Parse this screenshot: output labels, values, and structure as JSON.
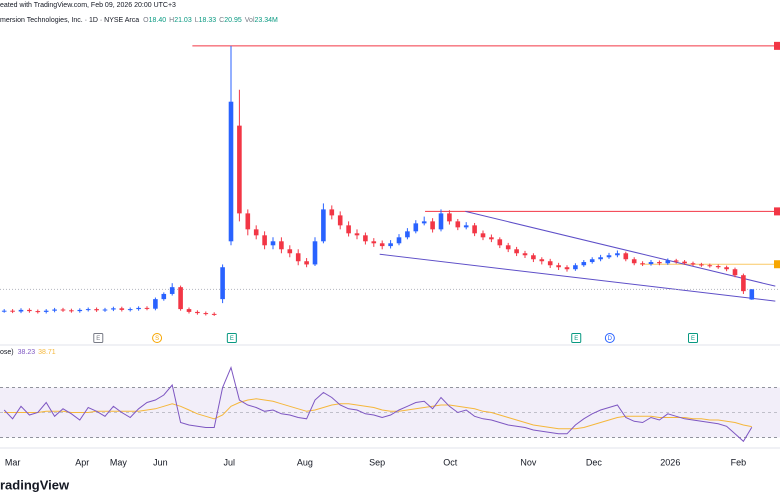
{
  "header": {
    "credit": "eated with TradingView.com, Feb 09, 2026 20:00 UTC+3",
    "symbol": "mersion Technologies, Inc. · 1D · NYSE Arca",
    "ohlc": [
      {
        "key": "O",
        "value": "18.40"
      },
      {
        "key": "H",
        "value": "21.03"
      },
      {
        "key": "L",
        "value": "18.33"
      },
      {
        "key": "C",
        "value": "20.95"
      },
      {
        "key": "Vol",
        "value": "23.34M"
      }
    ]
  },
  "footer": {
    "brand": "radingView"
  },
  "chart_data": {
    "type": "candlestick",
    "up_color": "#2962ff",
    "down_color": "#f23645",
    "xlim": [
      -0.5,
      89.5
    ],
    "ylim": [
      7,
      93.5
    ],
    "xticks": [
      {
        "value": 1,
        "label": "Mar"
      },
      {
        "value": 9.3,
        "label": "Apr"
      },
      {
        "value": 13.6,
        "label": "May"
      },
      {
        "value": 18.6,
        "label": "Jun"
      },
      {
        "value": 26.8,
        "label": "Jul"
      },
      {
        "value": 35.8,
        "label": "Aug"
      },
      {
        "value": 44.4,
        "label": "Sep"
      },
      {
        "value": 53.1,
        "label": "Oct"
      },
      {
        "value": 62.4,
        "label": "Nov"
      },
      {
        "value": 70.2,
        "label": "Dec"
      },
      {
        "value": 79.3,
        "label": "2026"
      },
      {
        "value": 87.4,
        "label": "Feb"
      }
    ],
    "open": [
      15.5,
      15.6,
      15.4,
      15.8,
      15.5,
      15.3,
      15.6,
      15.9,
      15.7,
      15.5,
      15.8,
      16.0,
      15.7,
      15.9,
      16.2,
      15.8,
      16.0,
      16.3,
      16.1,
      18.5,
      19.8,
      21.5,
      16.0,
      15.3,
      15.0,
      14.8,
      18.5,
      33,
      62,
      40,
      36,
      34.5,
      32,
      33,
      31,
      30,
      28,
      27.2,
      33,
      41,
      39.5,
      37,
      35,
      34.5,
      33,
      32.5,
      31.8,
      32.5,
      34,
      35.5,
      37.5,
      38,
      36,
      40,
      38,
      36.5,
      37,
      35,
      34,
      33.5,
      32,
      31,
      30,
      29.5,
      28.5,
      28,
      27,
      26.5,
      26,
      27,
      27.8,
      28.5,
      29,
      29.5,
      30,
      28.5,
      27.5,
      27.3,
      27.8,
      27.5,
      28.2,
      27.9,
      27.5,
      27.2,
      27,
      26.8,
      26.5,
      26,
      24.5,
      18.4
    ],
    "high": [
      16.0,
      16.0,
      16.2,
      16.2,
      15.9,
      16.0,
      16.3,
      16.3,
      16.1,
      16.2,
      16.4,
      16.4,
      16.3,
      16.6,
      16.6,
      16.4,
      16.7,
      16.7,
      18.9,
      20.2,
      22.5,
      21.9,
      16.4,
      15.7,
      15.4,
      15.2,
      27.2,
      82,
      71,
      41,
      37,
      35.5,
      34,
      34,
      32,
      31,
      28.8,
      34,
      42.5,
      42,
      40.5,
      38,
      36,
      35.2,
      33.8,
      33.2,
      33.3,
      34.8,
      36.3,
      38.3,
      39.2,
      38.8,
      41,
      40.8,
      38.6,
      37.8,
      37.6,
      35.7,
      34.7,
      34,
      32.6,
      31.6,
      30.6,
      30,
      29,
      28.6,
      27.6,
      27,
      27.5,
      28.3,
      29,
      29.6,
      30.1,
      30.7,
      30.4,
      29,
      28,
      28.3,
      28.2,
      28.7,
      28.6,
      28.3,
      27.9,
      27.6,
      27.4,
      27.2,
      26.9,
      26.4,
      24.9,
      21.03
    ],
    "low": [
      15.1,
      15.0,
      15.0,
      15.1,
      14.9,
      14.9,
      15.2,
      15.3,
      15.1,
      15.1,
      15.4,
      15.3,
      15.3,
      15.5,
      15.4,
      15.4,
      15.6,
      15.7,
      15.7,
      18.1,
      19.4,
      15.6,
      14.9,
      14.6,
      14.4,
      14.3,
      17.5,
      32,
      38,
      34.5,
      33.5,
      31,
      31,
      30,
      29,
      27,
      26.5,
      26.8,
      32.5,
      38.5,
      36,
      34.2,
      33.5,
      32.2,
      31.6,
      31,
      31.2,
      32,
      33.5,
      35,
      37,
      35.2,
      35.5,
      37.2,
      35.8,
      36,
      34.3,
      33.3,
      32.8,
      31.3,
      30.3,
      29.3,
      28.8,
      27.8,
      27.2,
      26.3,
      25.8,
      25.4,
      25.6,
      26.6,
      27.4,
      28,
      28.6,
      29,
      28,
      27,
      26.8,
      26.9,
      27,
      27.1,
      27.4,
      27.1,
      26.8,
      26.6,
      26.4,
      26.1,
      25.5,
      24,
      19.8,
      18.33
    ],
    "close": [
      15.6,
      15.4,
      15.8,
      15.5,
      15.3,
      15.6,
      15.9,
      15.7,
      15.5,
      15.8,
      16.0,
      15.7,
      15.9,
      16.2,
      15.8,
      16.0,
      16.3,
      16.1,
      18.5,
      19.8,
      21.5,
      16.0,
      15.3,
      15.0,
      14.8,
      14.7,
      26.5,
      68,
      40,
      36,
      34.5,
      32,
      33,
      31,
      30,
      28,
      27.2,
      33,
      41,
      39.5,
      37,
      35,
      34.5,
      33,
      32.5,
      31.8,
      32.5,
      34,
      35.5,
      37.5,
      38,
      36,
      40,
      38,
      36.5,
      37,
      35,
      34,
      33.5,
      32,
      31,
      30,
      29.5,
      28.5,
      28,
      27,
      26.5,
      26,
      27,
      27.8,
      28.5,
      29,
      29.5,
      30,
      28.5,
      27.5,
      27.3,
      27.8,
      27.5,
      28.2,
      27.9,
      27.5,
      27.2,
      27,
      26.8,
      26.5,
      26,
      24.5,
      20.5,
      20.95
    ],
    "levels": [
      {
        "price": 82,
        "from": 22.4,
        "color": "#f23645"
      },
      {
        "price": 40.5,
        "from": 50.1,
        "color": "#f23645"
      },
      {
        "price": 27.25,
        "from": 75.7,
        "color": "#f7a600"
      }
    ],
    "trendlines": [
      {
        "start": [
          54.9,
          40.5
        ],
        "end": [
          91.8,
          21.75
        ],
        "color": "#5e4fc8"
      },
      {
        "start": [
          44.7,
          29.75
        ],
        "end": [
          91.8,
          18
        ],
        "color": "#5e4fc8"
      }
    ],
    "events": [
      {
        "index": 11.2,
        "label": "E",
        "color": "#787b86"
      },
      {
        "index": 18.2,
        "label": "S",
        "color": "#f7a600"
      },
      {
        "index": 27.1,
        "label": "E",
        "color": "#089981"
      },
      {
        "index": 68.1,
        "label": "E",
        "color": "#089981"
      },
      {
        "index": 72.1,
        "label": "D",
        "color": "#2962ff"
      },
      {
        "index": 82,
        "label": "E",
        "color": "#089981"
      }
    ],
    "rsi": {
      "title": "ose)",
      "ylim": [
        24,
        100
      ],
      "bands": [
        70,
        50,
        30
      ],
      "color": "#7e57c2",
      "ma_color": "#f5b73b",
      "values": [
        52,
        45,
        55,
        48,
        50,
        58,
        47,
        53,
        49,
        44,
        54,
        51,
        47,
        55,
        50,
        46,
        53,
        58,
        60,
        64,
        72,
        42,
        40,
        39,
        38,
        38,
        70,
        86,
        60,
        56,
        54,
        51,
        52,
        49,
        48,
        46,
        45,
        60,
        66,
        62,
        56,
        53,
        52,
        49,
        48,
        46,
        48,
        52,
        55,
        58,
        59,
        53,
        62,
        55,
        50,
        52,
        47,
        45,
        44,
        42,
        40,
        39,
        38,
        36,
        35,
        34,
        33,
        33,
        40,
        45,
        49,
        52,
        54,
        56,
        46,
        43,
        42,
        46,
        44,
        49,
        47,
        45,
        44,
        43,
        42,
        41,
        39,
        33,
        27,
        38.23
      ],
      "ma": [
        50,
        50,
        50,
        50,
        50,
        51,
        51,
        51,
        50,
        50,
        50,
        51,
        51,
        51,
        51,
        51,
        51,
        52,
        53,
        55,
        57,
        55,
        52,
        49,
        47,
        45,
        48,
        55,
        58,
        60,
        61,
        60,
        59,
        57,
        55,
        53,
        51,
        52,
        54,
        56,
        57,
        57,
        56,
        55,
        54,
        52,
        51,
        51,
        52,
        53,
        54,
        55,
        56,
        56,
        55,
        54,
        53,
        51,
        50,
        48,
        46,
        44,
        42,
        40,
        39,
        38,
        37,
        37,
        37,
        38,
        40,
        42,
        44,
        46,
        47,
        47,
        47,
        47,
        46,
        46,
        46,
        46,
        45,
        45,
        44,
        44,
        43,
        42,
        40,
        38.71
      ]
    }
  }
}
